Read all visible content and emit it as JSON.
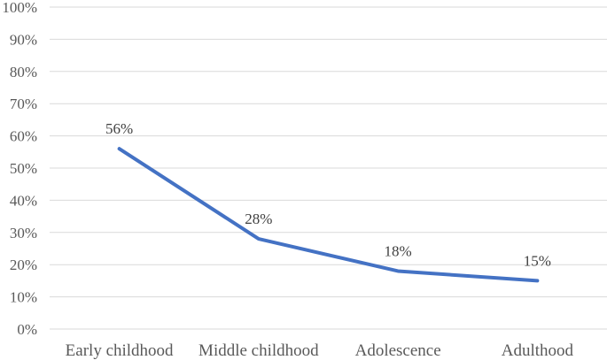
{
  "chart_data": {
    "type": "line",
    "title": "",
    "xlabel": "",
    "ylabel": "",
    "categories": [
      "Early childhood",
      "Middle childhood",
      "Adolescence",
      "Adulthood"
    ],
    "series": [
      {
        "values": [
          56,
          28,
          18,
          15
        ],
        "data_labels": [
          "56%",
          "28%",
          "18%",
          "15%"
        ],
        "color": "#4472c4"
      }
    ],
    "ylim": [
      0,
      100
    ],
    "yticks": [
      0,
      10,
      20,
      30,
      40,
      50,
      60,
      70,
      80,
      90,
      100
    ],
    "ytick_labels": [
      "0%",
      "10%",
      "20%",
      "30%",
      "40%",
      "50%",
      "60%",
      "70%",
      "80%",
      "90%",
      "100%"
    ],
    "grid": true,
    "legend": "none"
  }
}
